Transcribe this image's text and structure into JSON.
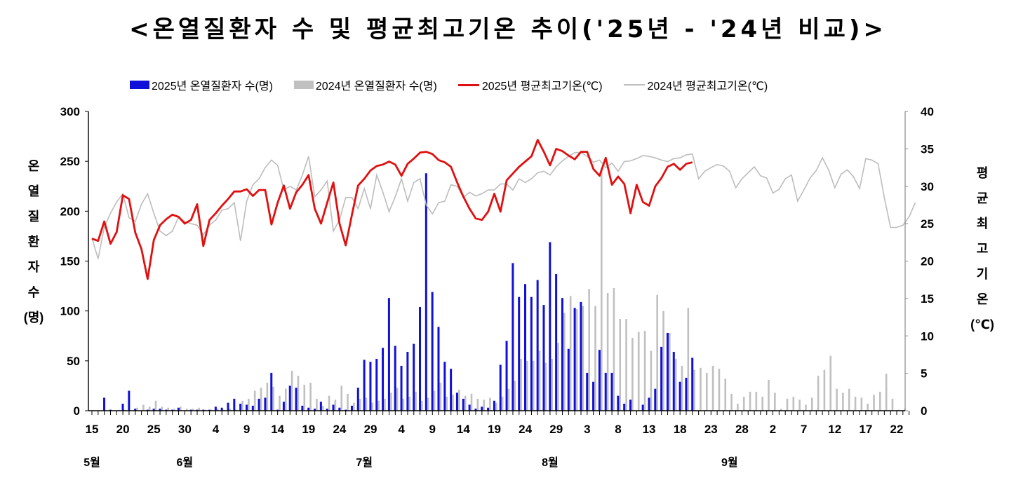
{
  "title": "<온열질환자 수 및 평균최고기온 추이('25년 - '24년 비교)>",
  "legend": [
    {
      "label": "2025년 온열질환자 수(명)",
      "type": "bar",
      "color": "#1010d8"
    },
    {
      "label": "2024년 온열질환자 수(명)",
      "type": "bar",
      "color": "#c0c0c0"
    },
    {
      "label": "2025년 평균최고기온(℃)",
      "type": "line",
      "color": "#e01010"
    },
    {
      "label": "2024년 평균최고기온(℃)",
      "type": "line",
      "color": "#bdbdbd"
    }
  ],
  "axes": {
    "y_left_label_chars": [
      "온",
      "열",
      "질",
      "환",
      "자",
      "수",
      "(명)"
    ],
    "y_right_label_chars": [
      "평",
      "균",
      "최",
      "고",
      "기",
      "온",
      "(℃)"
    ],
    "y_left_ticks": [
      0,
      50,
      100,
      150,
      200,
      250,
      300
    ],
    "y_right_ticks": [
      0,
      5,
      10,
      15,
      20,
      25,
      30,
      35,
      40
    ]
  },
  "chart_data": {
    "type": "bar+line",
    "title": "<온열질환자 수 및 평균최고기온 추이('25년 - '24년 비교)>",
    "xlabel": "",
    "ylabel": "온열질환자 수(명)",
    "y2label": "평균최고기온(℃)",
    "ylim": [
      0,
      300
    ],
    "y2lim": [
      0,
      40
    ],
    "start_date": "05-15",
    "x_tick_labels": [
      {
        "idx": 0,
        "label": "15"
      },
      {
        "idx": 5,
        "label": "20"
      },
      {
        "idx": 10,
        "label": "25"
      },
      {
        "idx": 15,
        "label": "30"
      },
      {
        "idx": 20,
        "label": "4"
      },
      {
        "idx": 25,
        "label": "9"
      },
      {
        "idx": 30,
        "label": "14"
      },
      {
        "idx": 35,
        "label": "19"
      },
      {
        "idx": 40,
        "label": "24"
      },
      {
        "idx": 45,
        "label": "29"
      },
      {
        "idx": 50,
        "label": "4"
      },
      {
        "idx": 55,
        "label": "9"
      },
      {
        "idx": 60,
        "label": "14"
      },
      {
        "idx": 65,
        "label": "19"
      },
      {
        "idx": 70,
        "label": "24"
      },
      {
        "idx": 75,
        "label": "29"
      },
      {
        "idx": 80,
        "label": "3"
      },
      {
        "idx": 85,
        "label": "8"
      },
      {
        "idx": 90,
        "label": "13"
      },
      {
        "idx": 95,
        "label": "18"
      },
      {
        "idx": 100,
        "label": "23"
      },
      {
        "idx": 105,
        "label": "28"
      },
      {
        "idx": 110,
        "label": "2"
      },
      {
        "idx": 115,
        "label": "7"
      },
      {
        "idx": 120,
        "label": "12"
      },
      {
        "idx": 125,
        "label": "17"
      },
      {
        "idx": 130,
        "label": "22"
      }
    ],
    "month_labels": [
      {
        "idx": 0,
        "label": "5월"
      },
      {
        "idx": 15,
        "label": "6월"
      },
      {
        "idx": 44,
        "label": "7월"
      },
      {
        "idx": 74,
        "label": "8월"
      },
      {
        "idx": 103,
        "label": "9월"
      }
    ],
    "n_days": 133,
    "series": [
      {
        "name": "2025년 온열질환자 수(명)",
        "type": "bar",
        "color": "#1010d8",
        "values": [
          0,
          0,
          13,
          1,
          0,
          7,
          20,
          2,
          0,
          1,
          2,
          2,
          1,
          1,
          3,
          0,
          1,
          1,
          1,
          1,
          4,
          3,
          8,
          12,
          7,
          6,
          5,
          12,
          13,
          38,
          1,
          9,
          25,
          23,
          5,
          3,
          2,
          9,
          2,
          6,
          3,
          1,
          5,
          23,
          51,
          49,
          52,
          63,
          113,
          65,
          45,
          59,
          67,
          104,
          238,
          119,
          84,
          49,
          42,
          18,
          12,
          6,
          2,
          4,
          3,
          10,
          46,
          70,
          148,
          114,
          127,
          114,
          131,
          106,
          169,
          137,
          113,
          62,
          103,
          109,
          38,
          29,
          61,
          38,
          38,
          15,
          7,
          11,
          0,
          6,
          13,
          22,
          64,
          78,
          59,
          29,
          33,
          53,
          0,
          0,
          0,
          0,
          0,
          0,
          0,
          0,
          0,
          0,
          0,
          0,
          0,
          0,
          0,
          0,
          0,
          0,
          0,
          0,
          0,
          0,
          0,
          0,
          0,
          0,
          0,
          0,
          0,
          0,
          0,
          0,
          0,
          0,
          0
        ]
      },
      {
        "name": "2024년 온열질환자 수(명)",
        "type": "bar",
        "color": "#c0c0c0",
        "values": [
          0,
          0,
          0,
          0,
          1,
          1,
          0,
          3,
          6,
          4,
          10,
          4,
          3,
          2,
          4,
          2,
          2,
          3,
          1,
          1,
          2,
          1,
          2,
          1,
          10,
          12,
          20,
          23,
          28,
          24,
          15,
          22,
          40,
          35,
          26,
          28,
          12,
          5,
          15,
          11,
          25,
          17,
          8,
          12,
          13,
          8,
          10,
          12,
          18,
          23,
          12,
          14,
          19,
          10,
          13,
          20,
          28,
          14,
          16,
          21,
          15,
          17,
          12,
          11,
          13,
          8,
          14,
          22,
          30,
          52,
          50,
          50,
          60,
          48,
          52,
          68,
          98,
          115,
          102,
          105,
          122,
          105,
          243,
          118,
          123,
          92,
          92,
          73,
          79,
          80,
          60,
          116,
          100,
          78,
          52,
          45,
          103,
          41,
          43,
          38,
          45,
          42,
          32,
          17,
          7,
          14,
          19,
          19,
          14,
          31,
          18,
          2,
          12,
          14,
          11,
          6,
          13,
          35,
          41,
          55,
          22,
          18,
          22,
          14,
          13,
          7,
          16,
          19,
          37,
          12,
          1,
          2,
          0
        ]
      },
      {
        "name": "2025년 평균최고기온(℃)",
        "type": "line",
        "color": "#e01010",
        "values": [
          23.0,
          22.7,
          25.3,
          22.3,
          23.9,
          28.8,
          28.3,
          23.8,
          21.6,
          17.6,
          22.8,
          24.8,
          25.6,
          26.2,
          25.9,
          25.0,
          25.5,
          27.6,
          22.0,
          25.5,
          26.4,
          27.4,
          28.3,
          29.3,
          29.3,
          29.6,
          28.7,
          29.5,
          29.5,
          24.9,
          27.8,
          30.1,
          27.0,
          29.2,
          30.2,
          31.5,
          27.0,
          25.0,
          27.8,
          30.5,
          25.0,
          22.1,
          26.2,
          30.1,
          31.0,
          32.1,
          32.7,
          32.9,
          33.3,
          32.9,
          31.4,
          33.0,
          33.7,
          34.5,
          34.6,
          34.3,
          33.5,
          33.2,
          32.6,
          30.5,
          28.6,
          27.0,
          25.7,
          25.5,
          26.6,
          29.0,
          26.6,
          30.8,
          31.7,
          32.6,
          33.3,
          34.0,
          36.2,
          34.6,
          32.8,
          35.0,
          34.7,
          34.1,
          33.6,
          34.6,
          34.6,
          32.3,
          31.4,
          33.8,
          30.2,
          31.3,
          30.3,
          26.4,
          30.2,
          27.9,
          27.4,
          30.0,
          31.1,
          32.6,
          33.0,
          32.2,
          33.0,
          33.2
        ]
      },
      {
        "name": "2024년 평균최고기온(℃)",
        "type": "line",
        "color": "#bdbdbd",
        "values": [
          23.1,
          20.3,
          24.5,
          26.4,
          27.9,
          29.0,
          25.8,
          25.3,
          27.6,
          29.0,
          26.4,
          24.0,
          23.4,
          24.0,
          25.9,
          25.3,
          25.0,
          24.8,
          23.5,
          24.8,
          25.5,
          26.8,
          27.0,
          27.8,
          22.7,
          28.0,
          30.2,
          31.0,
          32.5,
          33.5,
          32.8,
          29.5,
          30.0,
          29.5,
          31.5,
          34.0,
          28.6,
          29.5,
          30.7,
          24.0,
          25.5,
          28.5,
          28.5,
          27.0,
          29.7,
          27.0,
          31.5,
          29.2,
          26.6,
          28.6,
          31.0,
          28.0,
          30.5,
          31.0,
          27.5,
          26.3,
          27.8,
          28.0,
          30.2,
          30.0,
          28.5,
          29.2,
          28.7,
          29.0,
          29.5,
          29.5,
          30.3,
          30.3,
          29.5,
          31.0,
          30.5,
          31.0,
          31.8,
          32.0,
          31.5,
          32.6,
          33.4,
          34.0,
          34.5,
          34.5,
          34.0,
          33.2,
          33.5,
          32.5,
          33.1,
          32.0,
          33.3,
          33.4,
          33.7,
          34.1,
          34.0,
          33.8,
          33.5,
          33.3,
          33.7,
          33.8,
          34.2,
          34.3,
          31.0,
          32.0,
          32.5,
          32.9,
          32.7,
          32.0,
          29.8,
          31.0,
          31.8,
          32.6,
          31.4,
          31.1,
          29.1,
          29.6,
          31.0,
          31.5,
          28.0,
          29.5,
          31.1,
          32.1,
          33.8,
          32.2,
          29.8,
          31.6,
          32.2,
          31.3,
          29.7,
          33.7,
          33.5,
          33.0,
          28.5,
          24.5,
          24.5,
          24.8,
          25.9,
          27.8
        ]
      }
    ]
  }
}
